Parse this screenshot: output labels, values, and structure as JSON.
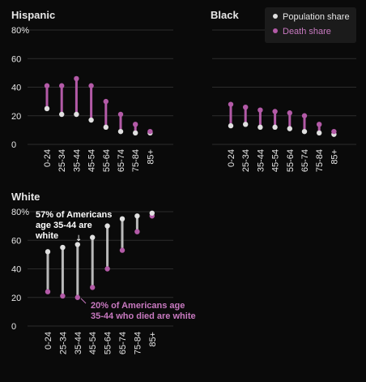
{
  "colors": {
    "background": "#0a0a0a",
    "population": "#e0e0e0",
    "population_stem": "#b9b9b9",
    "death": "#b35aa7",
    "death_text": "#c879c0",
    "grid": "#2c2c2c",
    "text": "#e6e6e6"
  },
  "legend": {
    "population_label": "Population share",
    "death_label": "Death share",
    "position": "top-right"
  },
  "annotations": {
    "population_note": [
      "57% of Americans",
      "age 35-44 are",
      "white"
    ],
    "death_note": [
      "20% of Americans age",
      "35-44 who died are white"
    ],
    "arrow_glyph": "↓"
  },
  "chart_data": [
    {
      "type": "dumbbell",
      "title": "Hispanic",
      "categories": [
        "0-24",
        "25-34",
        "35-44",
        "45-54",
        "55-64",
        "65-74",
        "75-84",
        "85+"
      ],
      "ylim": [
        0,
        80
      ],
      "yticks": [
        "0",
        "20",
        "40",
        "60",
        "80%"
      ],
      "grid": true,
      "series": [
        {
          "name": "Population share",
          "values": [
            25,
            21,
            21,
            17,
            12,
            9,
            8,
            8
          ]
        },
        {
          "name": "Death share",
          "values": [
            41,
            41,
            46,
            41,
            30,
            21,
            14,
            9
          ]
        }
      ]
    },
    {
      "type": "dumbbell",
      "title": "Black",
      "categories": [
        "0-24",
        "25-34",
        "35-44",
        "45-54",
        "55-64",
        "65-74",
        "75-84",
        "85+"
      ],
      "ylim": [
        0,
        80
      ],
      "yticks": [
        "0",
        "20",
        "40",
        "60",
        "80%"
      ],
      "grid": true,
      "series": [
        {
          "name": "Population share",
          "values": [
            13,
            14,
            12,
            12,
            11,
            9,
            8,
            7
          ]
        },
        {
          "name": "Death share",
          "values": [
            28,
            26,
            24,
            23,
            22,
            20,
            14,
            9
          ]
        }
      ]
    },
    {
      "type": "dumbbell",
      "title": "White",
      "categories": [
        "0-24",
        "25-34",
        "35-44",
        "45-54",
        "55-64",
        "65-74",
        "75-84",
        "85+"
      ],
      "ylim": [
        0,
        80
      ],
      "yticks": [
        "0",
        "20",
        "40",
        "60",
        "80%"
      ],
      "grid": true,
      "series": [
        {
          "name": "Population share",
          "values": [
            52,
            55,
            57,
            62,
            70,
            75,
            77,
            79
          ]
        },
        {
          "name": "Death share",
          "values": [
            24,
            21,
            20,
            27,
            40,
            53,
            66,
            77
          ]
        }
      ]
    }
  ]
}
